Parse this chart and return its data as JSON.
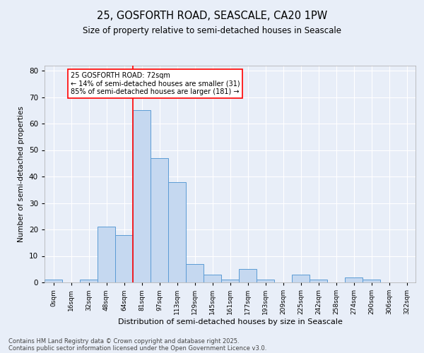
{
  "title_line1": "25, GOSFORTH ROAD, SEASCALE, CA20 1PW",
  "title_line2": "Size of property relative to semi-detached houses in Seascale",
  "xlabel": "Distribution of semi-detached houses by size in Seascale",
  "ylabel": "Number of semi-detached properties",
  "bin_labels": [
    "0sqm",
    "16sqm",
    "32sqm",
    "48sqm",
    "64sqm",
    "81sqm",
    "97sqm",
    "113sqm",
    "129sqm",
    "145sqm",
    "161sqm",
    "177sqm",
    "193sqm",
    "209sqm",
    "225sqm",
    "242sqm",
    "258sqm",
    "274sqm",
    "290sqm",
    "306sqm",
    "322sqm"
  ],
  "bar_values": [
    1,
    0,
    1,
    21,
    18,
    65,
    47,
    38,
    7,
    3,
    1,
    5,
    1,
    0,
    3,
    1,
    0,
    2,
    1,
    0,
    0
  ],
  "bar_color": "#c5d8f0",
  "bar_edge_color": "#5b9bd5",
  "red_line_x": 4.5,
  "ylim": [
    0,
    82
  ],
  "yticks": [
    0,
    10,
    20,
    30,
    40,
    50,
    60,
    70,
    80
  ],
  "annotation_title": "25 GOSFORTH ROAD: 72sqm",
  "annotation_line1": "← 14% of semi-detached houses are smaller (31)",
  "annotation_line2": "85% of semi-detached houses are larger (181) →",
  "footer_line1": "Contains HM Land Registry data © Crown copyright and database right 2025.",
  "footer_line2": "Contains public sector information licensed under the Open Government Licence v3.0.",
  "bg_color": "#e8eef8",
  "plot_bg_color": "#e8eef8"
}
